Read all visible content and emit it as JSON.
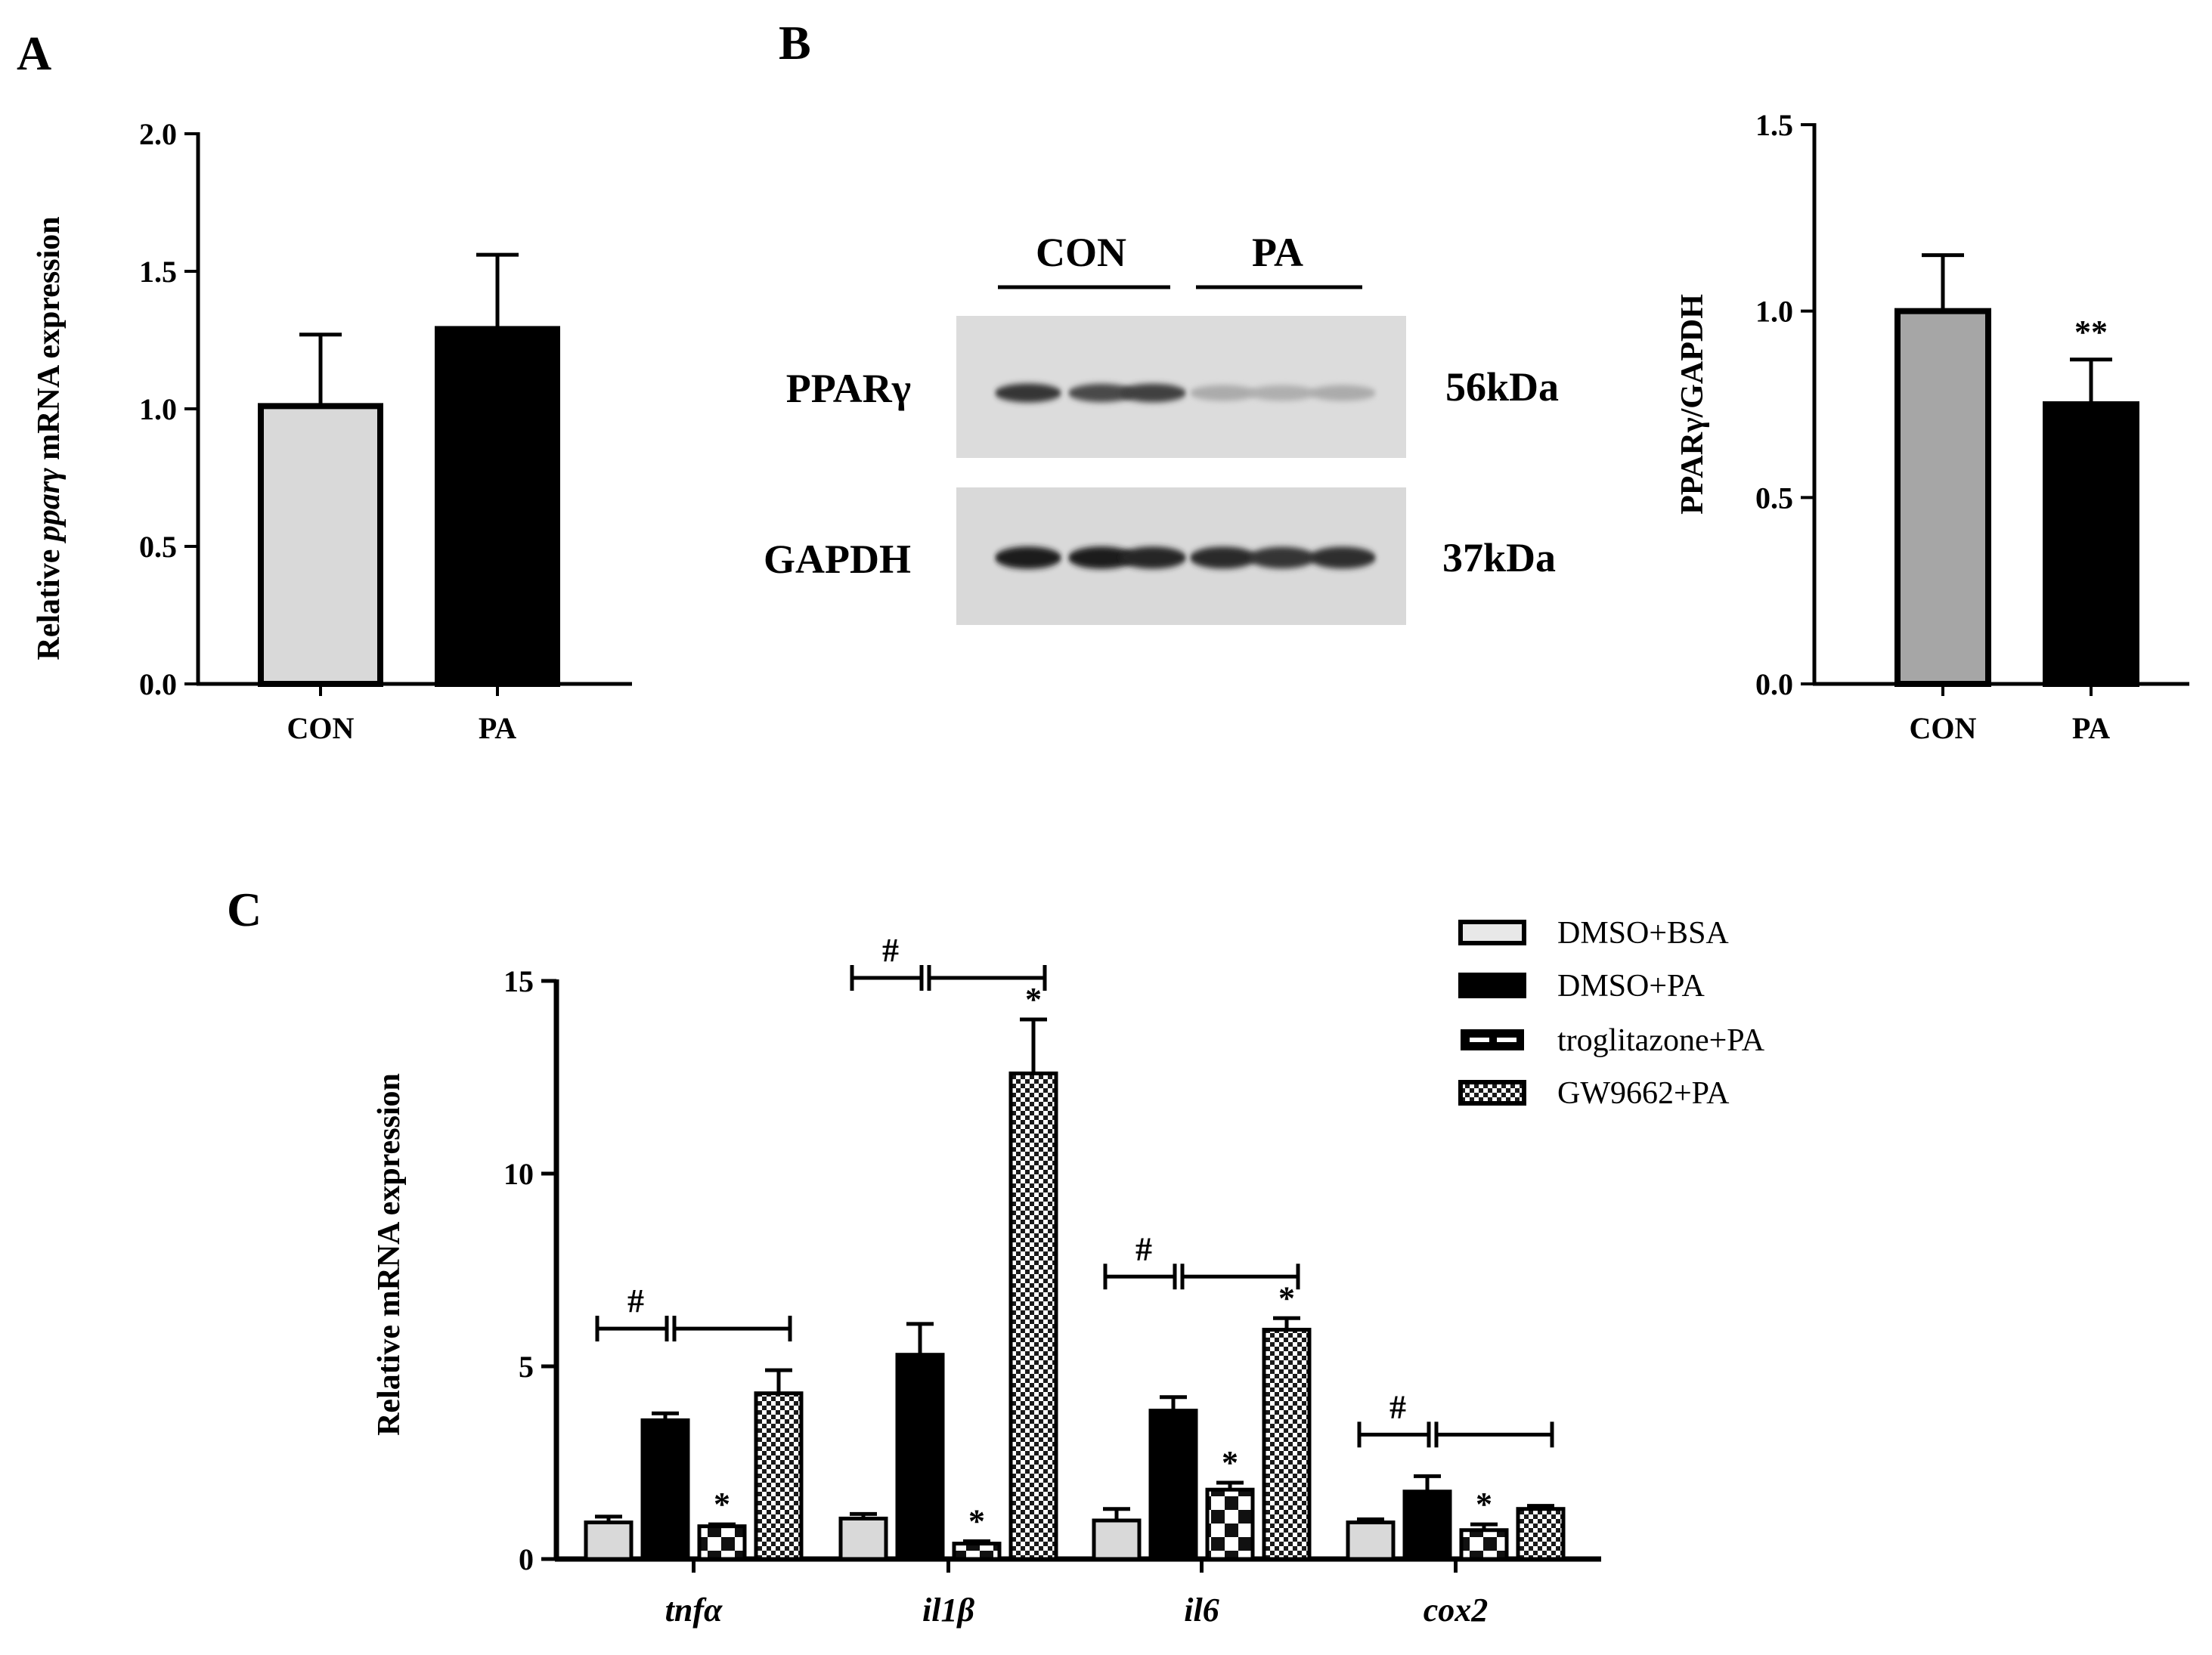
{
  "panels": {
    "a": "A",
    "b": "B",
    "c": "C"
  },
  "chart_data": [
    {
      "id": "A",
      "type": "bar",
      "title": "",
      "ylabel_parts": [
        "Relative ",
        "pparγ",
        " mRNA expression"
      ],
      "xlabel": "",
      "ylim": [
        0,
        2.0
      ],
      "yticks": [
        "0.0",
        "0.5",
        "1.0",
        "1.5",
        "2.0"
      ],
      "categories": [
        "CON",
        "PA"
      ],
      "values": [
        1.01,
        1.29
      ],
      "errors": [
        0.26,
        0.27
      ],
      "colors": [
        "#d9d9d9",
        "#000000"
      ],
      "annotations": [
        "",
        ""
      ]
    },
    {
      "id": "B",
      "type": "bar",
      "title": "",
      "ylabel": "PPARγ/GAPDH",
      "xlabel": "",
      "ylim": [
        0,
        1.5
      ],
      "yticks": [
        "0.0",
        "0.5",
        "1.0",
        "1.5"
      ],
      "categories": [
        "CON",
        "PA"
      ],
      "values": [
        1.0,
        0.75
      ],
      "errors": [
        0.15,
        0.12
      ],
      "colors": [
        "#a6a6a6",
        "#000000"
      ],
      "annotations": [
        "",
        "**"
      ]
    },
    {
      "id": "C",
      "type": "bar",
      "title": "",
      "ylabel": "Relative mRNA expression",
      "xlabel": "",
      "ylim": [
        0,
        15
      ],
      "yticks": [
        "0",
        "5",
        "10",
        "15"
      ],
      "categories": [
        "tnfα",
        "il1β",
        "il6",
        "cox2"
      ],
      "series": [
        {
          "name": "DMSO+BSA",
          "pattern": "light",
          "values": [
            0.95,
            1.05,
            1.0,
            0.95
          ],
          "errors": [
            0.15,
            0.12,
            0.3,
            0.08
          ],
          "marks": [
            "",
            "",
            "",
            ""
          ]
        },
        {
          "name": "DMSO+PA",
          "pattern": "solid",
          "values": [
            3.6,
            5.3,
            3.85,
            1.75
          ],
          "errors": [
            0.18,
            0.8,
            0.35,
            0.4
          ],
          "marks": [
            "",
            "",
            "",
            ""
          ]
        },
        {
          "name": "troglitazone+PA",
          "pattern": "dash",
          "values": [
            0.85,
            0.4,
            1.8,
            0.75
          ],
          "errors": [
            0.05,
            0.06,
            0.18,
            0.15
          ],
          "marks": [
            "*",
            "*",
            "*",
            "*"
          ]
        },
        {
          "name": "GW9662+PA",
          "pattern": "check",
          "values": [
            4.3,
            12.6,
            5.95,
            1.3
          ],
          "errors": [
            0.6,
            1.4,
            0.3,
            0.08
          ],
          "marks": [
            "",
            "*",
            "*",
            ""
          ]
        }
      ],
      "group_marks": [
        "#",
        "#",
        "#",
        "#"
      ]
    }
  ],
  "western_blot": {
    "groups": [
      "CON",
      "PA"
    ],
    "rows": [
      {
        "protein": "PPARγ",
        "size": "56kDa",
        "intensities": [
          0.85,
          0.75,
          0.8,
          0.3,
          0.28,
          0.3
        ]
      },
      {
        "protein": "GAPDH",
        "size": "37kDa",
        "intensities": [
          0.95,
          0.95,
          0.92,
          0.9,
          0.85,
          0.88
        ]
      }
    ]
  }
}
